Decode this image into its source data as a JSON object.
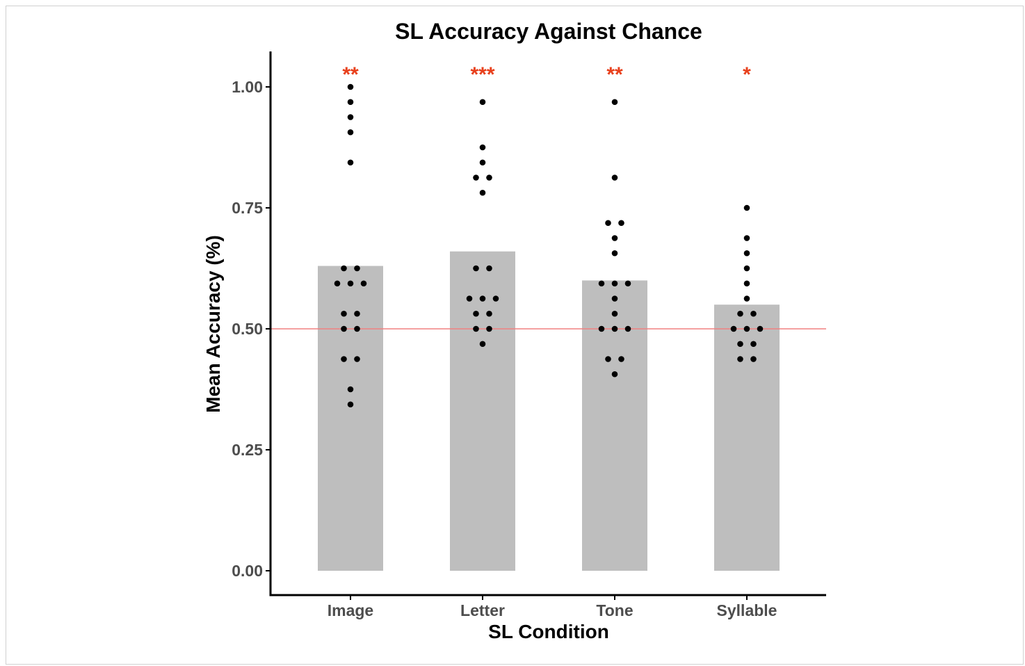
{
  "chart_data": {
    "type": "bar",
    "title": "SL Accuracy Against Chance",
    "xlabel": "SL Condition",
    "ylabel": "Mean Accuracy (%)",
    "categories": [
      "Image",
      "Letter",
      "Tone",
      "Syllable"
    ],
    "values": [
      0.63,
      0.66,
      0.6,
      0.55
    ],
    "ylim": [
      0,
      1.05
    ],
    "yticks": [
      "0.00",
      "0.25",
      "0.50",
      "0.75",
      "1.00"
    ],
    "ytick_values": [
      0,
      0.25,
      0.5,
      0.75,
      1.0
    ],
    "chance_line": 0.5,
    "significance": [
      "**",
      "***",
      "**",
      "*"
    ],
    "points": [
      [
        1.0,
        0.969,
        0.938,
        0.906,
        0.844,
        0.625,
        0.625,
        0.594,
        0.594,
        0.594,
        0.531,
        0.531,
        0.5,
        0.5,
        0.438,
        0.438,
        0.375,
        0.344
      ],
      [
        0.969,
        0.875,
        0.844,
        0.813,
        0.813,
        0.781,
        0.625,
        0.625,
        0.563,
        0.563,
        0.563,
        0.531,
        0.531,
        0.5,
        0.5,
        0.469
      ],
      [
        0.969,
        0.813,
        0.719,
        0.719,
        0.688,
        0.656,
        0.594,
        0.594,
        0.594,
        0.563,
        0.531,
        0.5,
        0.5,
        0.5,
        0.438,
        0.438,
        0.406
      ],
      [
        0.75,
        0.688,
        0.656,
        0.625,
        0.594,
        0.563,
        0.531,
        0.531,
        0.5,
        0.5,
        0.5,
        0.469,
        0.469,
        0.438,
        0.438
      ]
    ],
    "grid": false,
    "colors": {
      "bar": "#bebebe",
      "point": "#000000",
      "chance_line": "#f08080",
      "significance": "#e8401c",
      "axis": "#000000",
      "tick_label": "#4d4d4d"
    }
  }
}
